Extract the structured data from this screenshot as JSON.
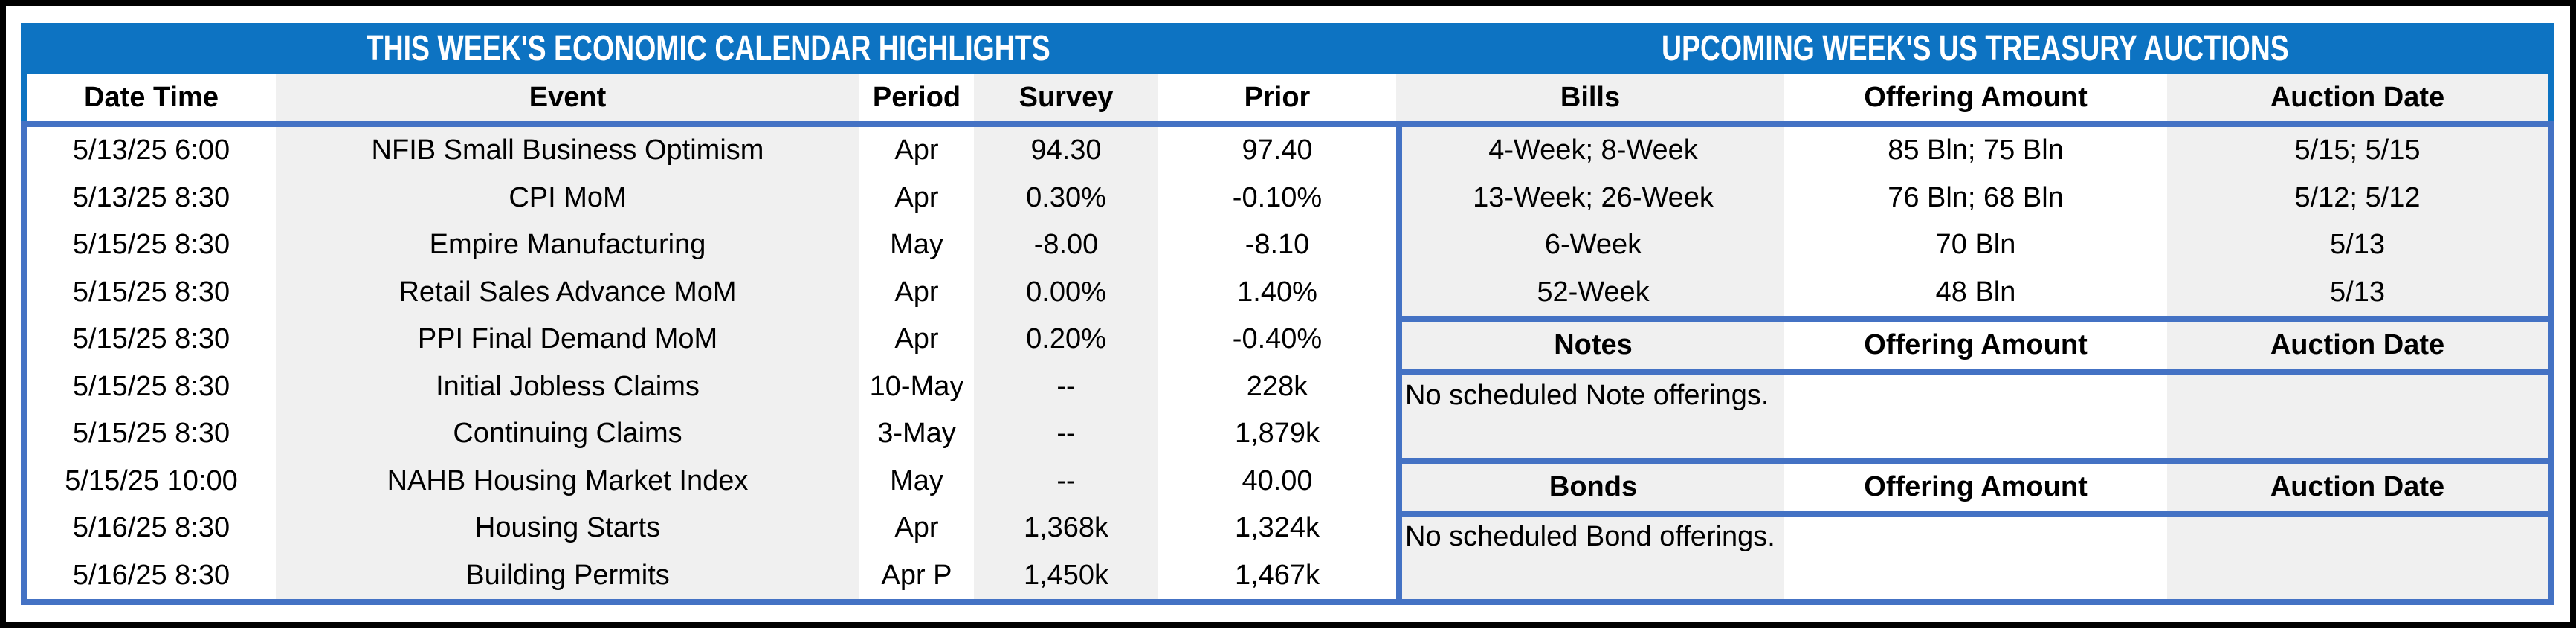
{
  "titles": {
    "left": "THIS WEEK'S ECONOMIC CALENDAR HIGHLIGHTS",
    "right": "UPCOMING WEEK'S US TREASURY AUCTIONS"
  },
  "calendar": {
    "headers": [
      "Date Time",
      "Event",
      "Period",
      "Survey",
      "Prior"
    ],
    "rows": [
      [
        "5/13/25 6:00",
        "NFIB Small Business Optimism",
        "Apr",
        "94.30",
        "97.40"
      ],
      [
        "5/13/25 8:30",
        "CPI MoM",
        "Apr",
        "0.30%",
        "-0.10%"
      ],
      [
        "5/15/25 8:30",
        "Empire Manufacturing",
        "May",
        "-8.00",
        "-8.10"
      ],
      [
        "5/15/25 8:30",
        "Retail Sales Advance MoM",
        "Apr",
        "0.00%",
        "1.40%"
      ],
      [
        "5/15/25 8:30",
        "PPI Final Demand MoM",
        "Apr",
        "0.20%",
        "-0.40%"
      ],
      [
        "5/15/25 8:30",
        "Initial Jobless Claims",
        "10-May",
        "--",
        "228k"
      ],
      [
        "5/15/25 8:30",
        "Continuing Claims",
        "3-May",
        "--",
        "1,879k"
      ],
      [
        "5/15/25 10:00",
        "NAHB Housing Market Index",
        "May",
        "--",
        "40.00"
      ],
      [
        "5/16/25 8:30",
        "Housing Starts",
        "Apr",
        "1,368k",
        "1,324k"
      ],
      [
        "5/16/25 8:30",
        "Building Permits",
        "Apr P",
        "1,450k",
        "1,467k"
      ]
    ]
  },
  "auctions": {
    "bills": {
      "headers": [
        "Bills",
        "Offering Amount",
        "Auction Date"
      ],
      "rows": [
        [
          "4-Week; 8-Week",
          "85 Bln; 75 Bln",
          "5/15; 5/15"
        ],
        [
          "13-Week; 26-Week",
          "76 Bln; 68 Bln",
          "5/12; 5/12"
        ],
        [
          "6-Week",
          "70 Bln",
          "5/13"
        ],
        [
          "52-Week",
          "48 Bln",
          "5/13"
        ]
      ]
    },
    "notes": {
      "headers": [
        "Notes",
        "Offering Amount",
        "Auction Date"
      ],
      "message": "No scheduled Note offerings."
    },
    "bonds": {
      "headers": [
        "Bonds",
        "Offering Amount",
        "Auction Date"
      ],
      "message": "No scheduled Bond offerings."
    }
  },
  "colors": {
    "title_blue": "#0D73C2",
    "border_blue": "#4472C4",
    "band_gray": "#F0F0F0",
    "frame_black": "#000000"
  }
}
